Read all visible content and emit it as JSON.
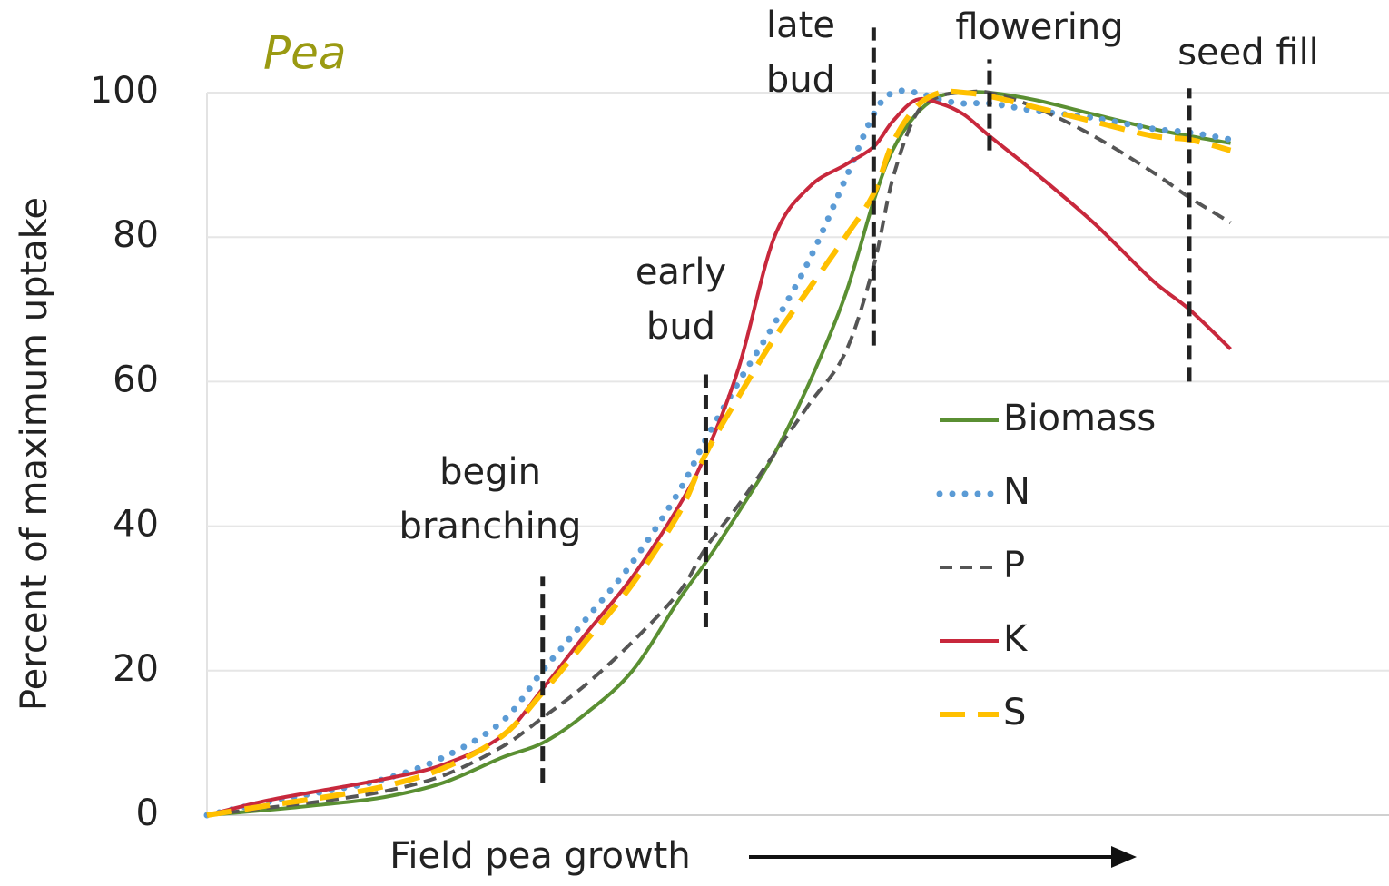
{
  "chart_data": {
    "type": "line",
    "title": "Pea",
    "y_label": "Percent of maximum uptake",
    "x_label": "Field pea growth",
    "xlim": [
      0,
      100
    ],
    "ylim": [
      0,
      100
    ],
    "yticks": [
      0,
      20,
      40,
      60,
      80,
      100
    ],
    "grid": true,
    "legend": "right",
    "x": [
      0,
      5,
      10,
      15,
      20,
      25,
      28.4,
      32,
      36,
      40,
      42.2,
      45,
      48,
      51,
      54,
      56.4,
      58,
      60,
      62,
      64,
      66.2,
      70,
      75,
      80,
      83.1,
      86.6
    ],
    "series": [
      {
        "name": "Biomass",
        "color": "#5a8f32",
        "style": "solid",
        "values": [
          0,
          0.7,
          1.5,
          2.5,
          4.5,
          8,
          10,
          14,
          20,
          30,
          35,
          42,
          50,
          60,
          72,
          85,
          92,
          97,
          99.5,
          100,
          100,
          99,
          97,
          95,
          94,
          93
        ]
      },
      {
        "name": "N",
        "color": "#5b9bd5",
        "style": "dotted",
        "values": [
          0,
          1.8,
          3.3,
          5,
          8,
          13,
          20,
          27,
          35,
          45,
          52,
          60,
          68,
          77,
          88,
          97,
          100,
          100,
          99,
          98.5,
          98.5,
          97.5,
          96.5,
          95,
          94.5,
          93.5
        ]
      },
      {
        "name": "P",
        "color": "#555555",
        "style": "dashed",
        "values": [
          0,
          1,
          2,
          3.3,
          5.5,
          9.5,
          13.5,
          18,
          24,
          31,
          37,
          43,
          50,
          57,
          64,
          76,
          88,
          97,
          99.5,
          100,
          100,
          98,
          94,
          89,
          85.5,
          82
        ]
      },
      {
        "name": "K",
        "color": "#c8283c",
        "style": "solid",
        "values": [
          0,
          2,
          3.5,
          5,
          7,
          11,
          17.5,
          25,
          33,
          43,
          50,
          62,
          80,
          87,
          90,
          92.5,
          96,
          99,
          98.5,
          97,
          94,
          89,
          82,
          74,
          70,
          64.5
        ]
      },
      {
        "name": "S",
        "color": "#ffc000",
        "style": "longdash",
        "values": [
          0,
          1.3,
          2.5,
          4,
          6.5,
          11,
          17,
          24,
          32,
          42,
          50,
          58,
          66,
          73,
          80,
          86,
          93,
          98,
          100,
          100,
          99.5,
          98,
          96,
          94,
          93.5,
          92
        ]
      }
    ],
    "annotations": [
      {
        "lines": [
          "begin",
          "branching"
        ],
        "x": 28.4,
        "y_range": [
          4.5,
          33
        ]
      },
      {
        "lines": [
          "early",
          "bud"
        ],
        "x": 42.2,
        "y_range": [
          26,
          61
        ]
      },
      {
        "lines": [
          "late",
          "bud"
        ],
        "x": 56.4,
        "y_range": [
          65,
          109
        ]
      },
      {
        "lines": [
          "flowering"
        ],
        "x": 66.2,
        "y_range": [
          92,
          104.6
        ]
      },
      {
        "lines": [
          "seed fill"
        ],
        "x": 83.1,
        "y_range": [
          60,
          100.6
        ]
      }
    ]
  }
}
